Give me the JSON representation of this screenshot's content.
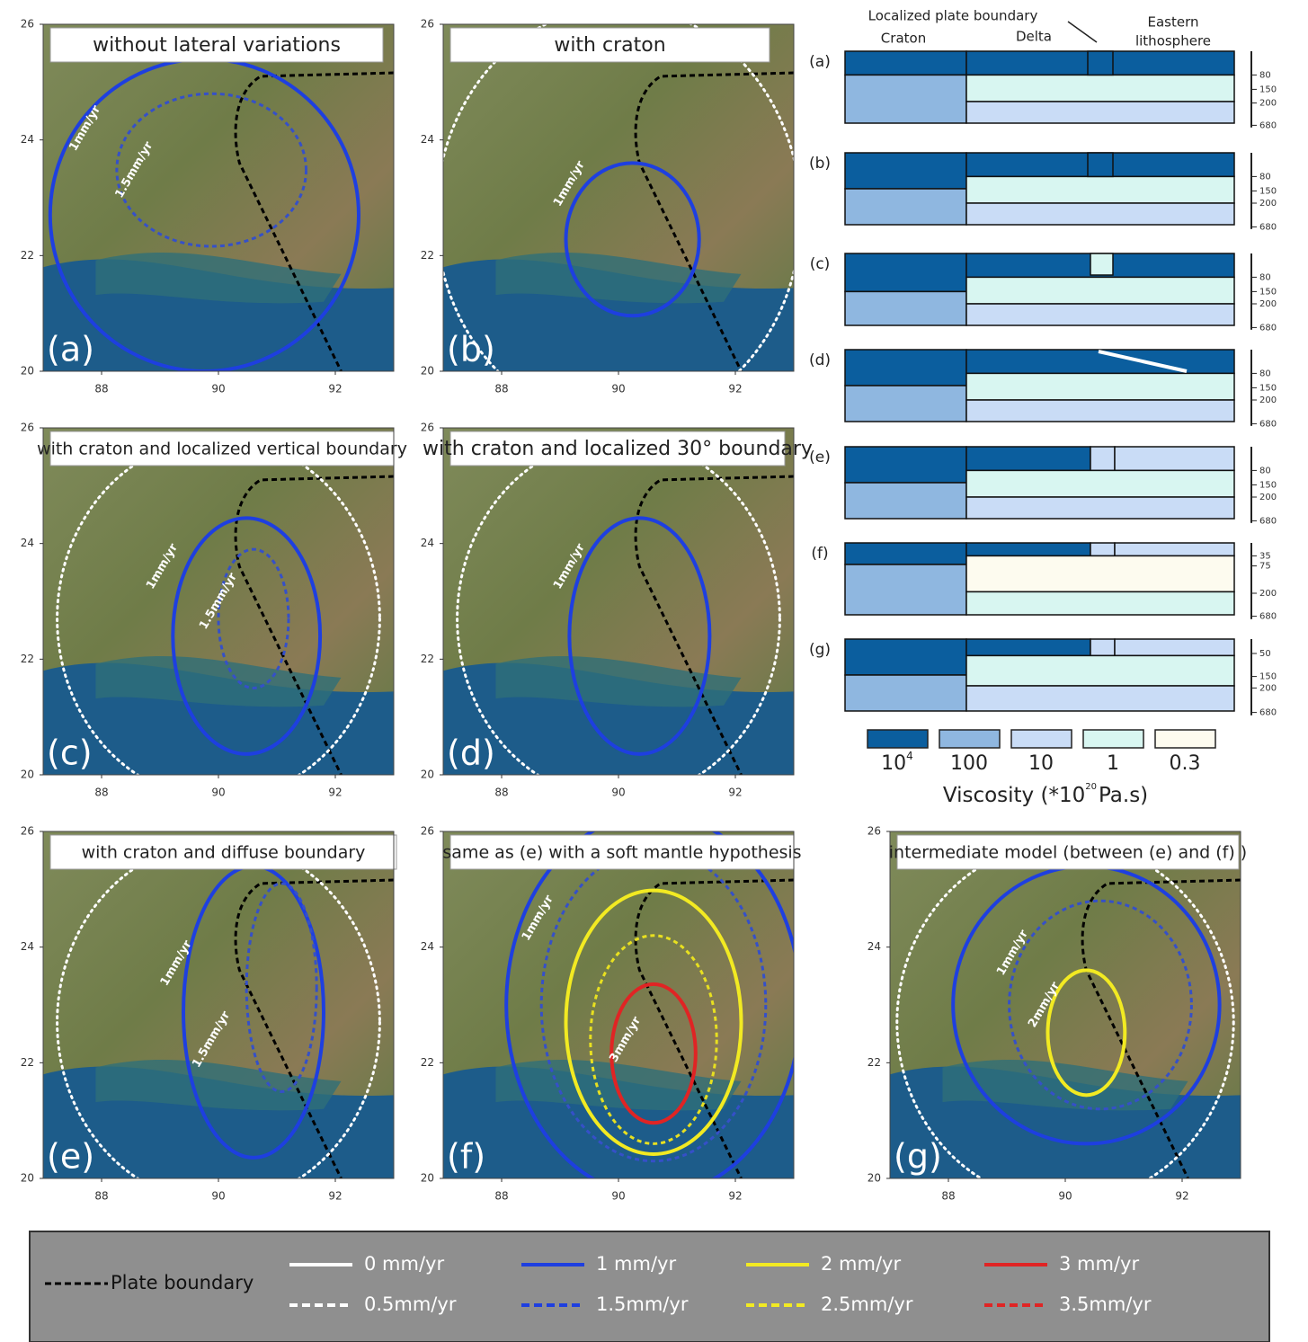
{
  "maps": [
    {
      "letter": "(a)",
      "title": "without lateral variations",
      "xticks": [
        88,
        90,
        92
      ],
      "yticks": [
        20,
        22,
        24,
        26
      ],
      "annotations": [
        "1mm/yr",
        "1.5mm/yr"
      ]
    },
    {
      "letter": "(b)",
      "title": "with craton",
      "xticks": [
        88,
        90,
        92
      ],
      "yticks": [
        20,
        22,
        24,
        26
      ],
      "annotations": [
        "1mm/yr"
      ]
    },
    {
      "letter": "(c)",
      "title": "with craton and localized vertical boundary",
      "xticks": [
        88,
        90,
        92
      ],
      "yticks": [
        20,
        22,
        24,
        26
      ],
      "annotations": [
        "1mm/yr",
        "1.5mm/yr"
      ]
    },
    {
      "letter": "(d)",
      "title": "with craton and localized 30° boundary",
      "xticks": [
        88,
        90,
        92
      ],
      "yticks": [
        20,
        22,
        24,
        26
      ],
      "annotations": [
        "1mm/yr"
      ]
    },
    {
      "letter": "(e)",
      "title": "with craton and diffuse boundary",
      "xticks": [
        88,
        90,
        92
      ],
      "yticks": [
        20,
        22,
        24,
        26
      ],
      "annotations": [
        "1mm/yr",
        "1.5mm/yr"
      ]
    },
    {
      "letter": "(f)",
      "title": "same as (e) with a soft mantle hypothesis",
      "xticks": [
        88,
        90,
        92
      ],
      "yticks": [
        20,
        22,
        24,
        26
      ],
      "annotations": [
        "1mm/yr",
        "3mm/yr"
      ]
    },
    {
      "letter": "(g)",
      "title": "intermediate model (between (e) and (f) )",
      "xticks": [
        88,
        90,
        92
      ],
      "yticks": [
        20,
        22,
        24,
        26
      ],
      "annotations": [
        "1mm/yr",
        "2mm/yr"
      ]
    }
  ],
  "viscosity": {
    "header": {
      "boundary": "Localized plate boundary",
      "craton": "Craton",
      "delta": "Delta",
      "eastern": [
        "Eastern",
        "lithosphere"
      ]
    },
    "rows": [
      {
        "letter": "(a)",
        "depths": [
          80,
          150,
          200,
          680
        ]
      },
      {
        "letter": "(b)",
        "depths": [
          80,
          150,
          200,
          680
        ]
      },
      {
        "letter": "(c)",
        "depths": [
          80,
          150,
          200,
          680
        ]
      },
      {
        "letter": "(d)",
        "depths": [
          80,
          150,
          200,
          680
        ]
      },
      {
        "letter": "(e)",
        "depths": [
          80,
          150,
          200,
          680
        ]
      },
      {
        "letter": "(f)",
        "depths": [
          35,
          75,
          200,
          680
        ]
      },
      {
        "letter": "(g)",
        "depths": [
          50,
          150,
          200,
          680
        ]
      }
    ],
    "scale": {
      "labels": [
        "10",
        "100",
        "10",
        "1",
        "0.3"
      ],
      "first_exponent": "4",
      "title": [
        "Viscosity (*10",
        "20",
        "Pa.s)"
      ]
    }
  },
  "legend": {
    "plate_boundary": "Plate boundary",
    "entries": [
      "0 mm/yr",
      "1 mm/yr",
      "2 mm/yr",
      "3 mm/yr",
      "0.5mm/yr",
      "1.5mm/yr",
      "2.5mm/yr",
      "3.5mm/yr"
    ]
  }
}
